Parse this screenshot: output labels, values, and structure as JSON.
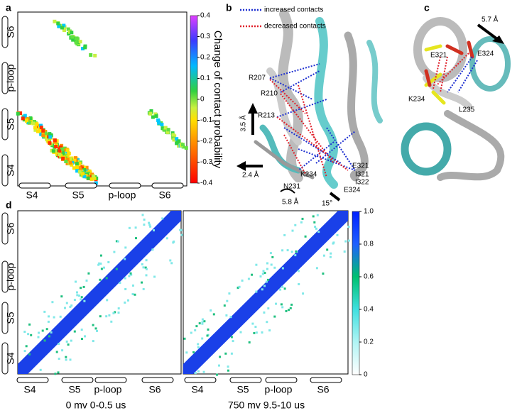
{
  "panels": {
    "a": {
      "label": "a",
      "colorbar_label": "Change of contact probability",
      "colorbar_ticks": [
        "0.4",
        "0.3",
        "0.2",
        "0.1",
        "0",
        "-0.1",
        "-0.2",
        "-0.3",
        "-0.4"
      ],
      "y_segments": [
        "S6",
        "p-loop",
        "S5",
        "S4"
      ],
      "x_segments": [
        "S4",
        "S5",
        "p-loop",
        "S6"
      ]
    },
    "b": {
      "label": "b",
      "legend": [
        "increased contacts",
        "decreased contacts"
      ],
      "annotations": [
        "R207",
        "R210",
        "R213",
        "3.5 Å",
        "2.4 Å",
        "K234",
        "N231",
        "5.8 Å",
        "15°",
        "E321",
        "I321",
        "I322",
        "E324"
      ]
    },
    "c": {
      "label": "c",
      "annotations": [
        "5.7 Å",
        "E321",
        "E324",
        "K234",
        "L235"
      ]
    },
    "d": {
      "label": "d",
      "colorbar_ticks": [
        "1.0",
        "0.8",
        "0.6",
        "0.4",
        "0.2",
        "0"
      ],
      "y_segments": [
        "S6",
        "p-loop",
        "S5",
        "S4"
      ],
      "maps": [
        {
          "caption": "0 mv  0-0.5 us",
          "x_segments": [
            "S4",
            "S5",
            "p-loop",
            "S6"
          ]
        },
        {
          "caption": "750 mv 9.5-10 us",
          "x_segments": [
            "S4",
            "S5",
            "p-loop",
            "S6"
          ]
        }
      ]
    }
  }
}
